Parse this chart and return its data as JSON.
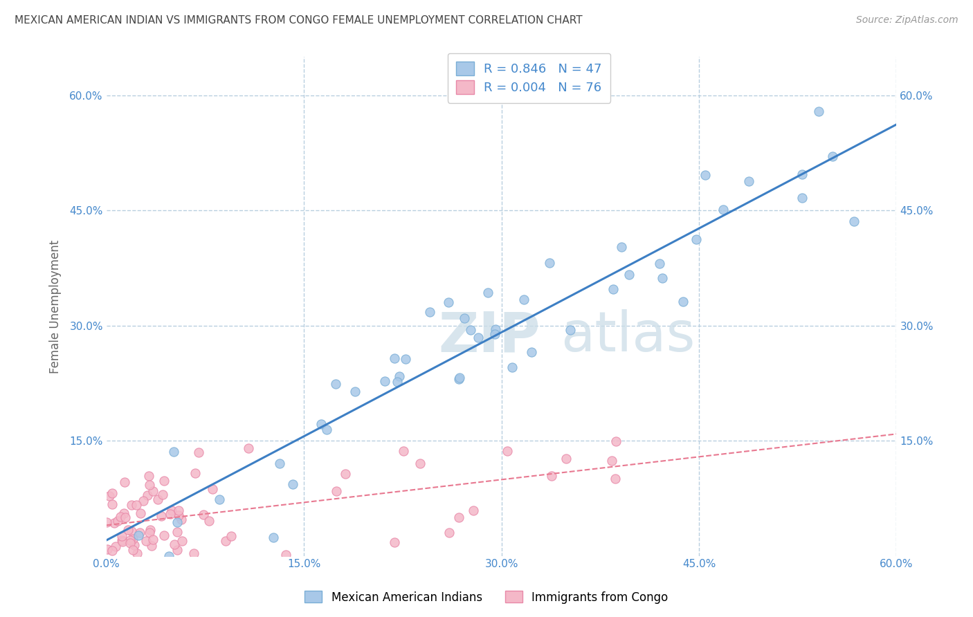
{
  "title": "MEXICAN AMERICAN INDIAN VS IMMIGRANTS FROM CONGO FEMALE UNEMPLOYMENT CORRELATION CHART",
  "source": "Source: ZipAtlas.com",
  "ylabel": "Female Unemployment",
  "xmin": 0.0,
  "xmax": 0.6,
  "ymin": 0.0,
  "ymax": 0.65,
  "x_ticks": [
    0.0,
    0.15,
    0.3,
    0.45,
    0.6
  ],
  "x_tick_labels": [
    "0.0%",
    "15.0%",
    "30.0%",
    "45.0%",
    "60.0%"
  ],
  "y_ticks": [
    0.0,
    0.15,
    0.3,
    0.45,
    0.6
  ],
  "y_tick_labels": [
    "",
    "15.0%",
    "30.0%",
    "45.0%",
    "60.0%"
  ],
  "blue_color": "#a8c8e8",
  "blue_edge": "#7aaed6",
  "pink_color": "#f4b8c8",
  "pink_edge": "#e888a8",
  "blue_line_color": "#3d7fc4",
  "pink_line_color": "#e87890",
  "R_blue": 0.846,
  "N_blue": 47,
  "R_pink": 0.004,
  "N_pink": 76,
  "legend_label_blue": "Mexican American Indians",
  "legend_label_pink": "Immigrants from Congo",
  "watermark_zip": "ZIP",
  "watermark_atlas": "atlas",
  "background_color": "#ffffff",
  "grid_color": "#b8cfe0",
  "title_color": "#444444",
  "axis_label_color": "#666666",
  "tick_label_color": "#4488cc",
  "legend_r_n_color": "#4488cc",
  "legend_label_color": "#444444"
}
